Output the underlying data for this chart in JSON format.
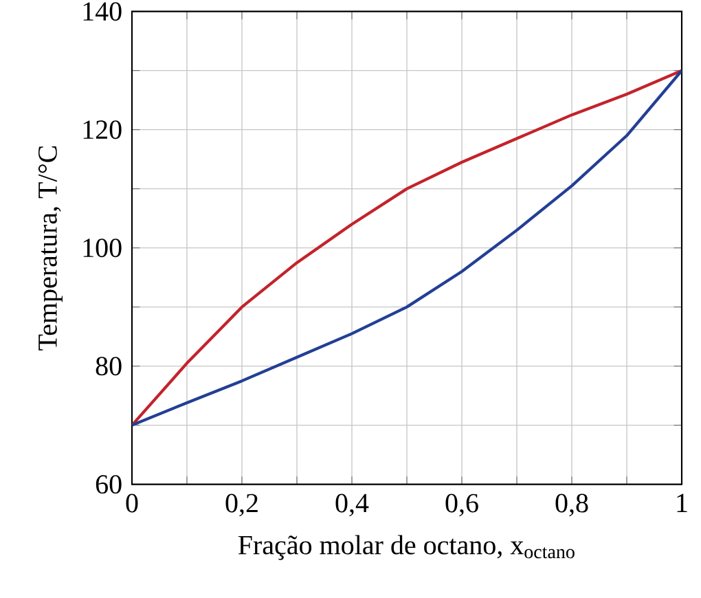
{
  "chart_data": {
    "type": "line",
    "xlabel": "Fração molar de octano, x$_{octano}$",
    "ylabel": "Temperatura, T/°C",
    "x": [
      0,
      0.1,
      0.2,
      0.3,
      0.4,
      0.5,
      0.6,
      0.7,
      0.8,
      0.9,
      1
    ],
    "series": [
      {
        "color": "#c3232b",
        "values": [
          70,
          80.5,
          90,
          97.5,
          104,
          110,
          114.5,
          118.5,
          122.5,
          126,
          130
        ]
      },
      {
        "color": "#233f95",
        "values": [
          70,
          73.8,
          77.5,
          81.5,
          85.5,
          90,
          96,
          103,
          110.5,
          119,
          130
        ]
      }
    ],
    "xlim": [
      0,
      1
    ],
    "ylim": [
      60,
      140
    ],
    "xticks": [
      0,
      {
        "value": 0.1,
        "label": null
      },
      {
        "value": 0.2,
        "label": "0,2"
      },
      {
        "value": 0.3,
        "label": null
      },
      {
        "value": 0.4,
        "label": "0,4"
      },
      {
        "value": 0.5,
        "label": null
      },
      {
        "value": 0.6,
        "label": "0,6"
      },
      {
        "value": 0.7,
        "label": null
      },
      {
        "value": 0.8,
        "label": "0,8"
      },
      {
        "value": 0.9,
        "label": null
      },
      1
    ],
    "yticks": [
      60,
      {
        "value": 70,
        "label": null
      },
      80,
      {
        "value": 90,
        "label": null
      },
      100,
      {
        "value": 110,
        "label": null
      },
      120,
      {
        "value": 130,
        "label": null
      },
      140
    ],
    "grid": true,
    "marker": "none",
    "line_style": "solid"
  }
}
